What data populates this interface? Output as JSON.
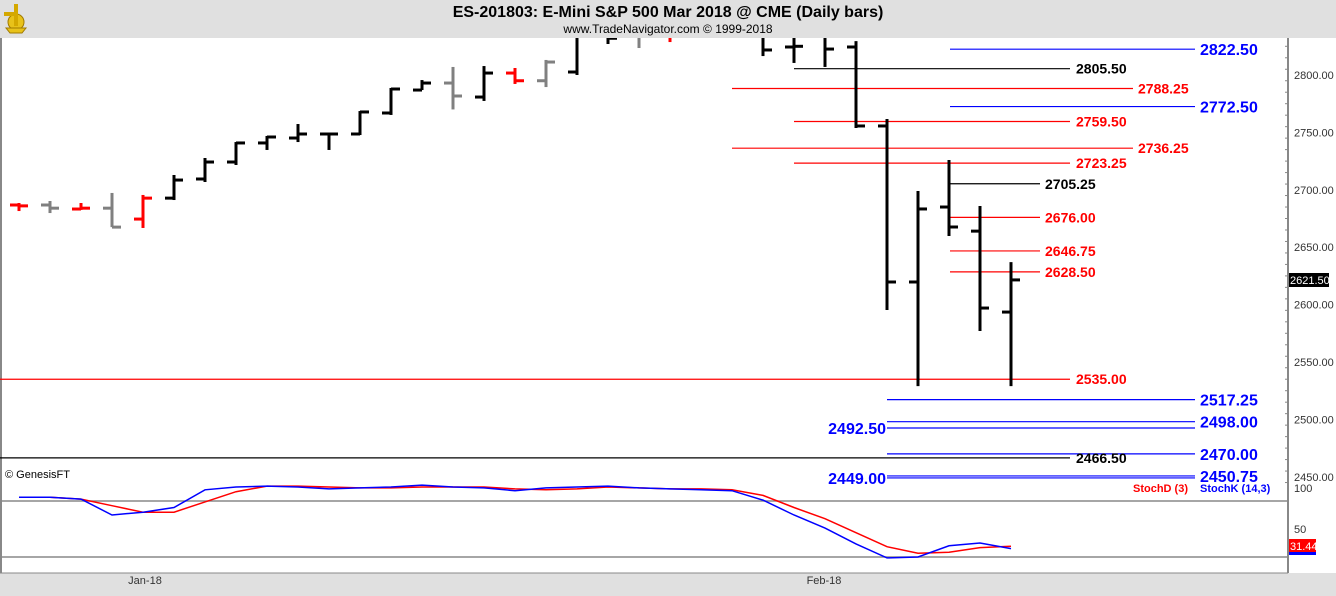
{
  "header": {
    "title": "ES-201803:  E-Mini S&P 500 Mar 2018 @ CME  (Daily bars)",
    "subtitle": "www.TradeNavigator.com © 1999-2018",
    "logo_icon": "gold-sextant-logo"
  },
  "colors": {
    "up": "#000000",
    "down": "#ff0000",
    "neutral": "#808080",
    "blue": "#0000ff",
    "red": "#ff0000",
    "black": "#000000"
  },
  "chart_data": [
    {
      "type": "ohlc",
      "title": "ES-201803:  E-Mini S&P 500 Mar 2018 @ CME  (Daily bars)",
      "y_ticks": [
        "2800.00",
        "2750.00",
        "2700.00",
        "2650.00",
        "2600.00",
        "2550.00",
        "2500.00",
        "2450.00"
      ],
      "ylim": [
        2440,
        2832
      ],
      "x_ticks": [
        "Jan-18",
        "Feb-18"
      ],
      "last_price_label": "2621.50",
      "bars": [
        {
          "o": 2686.75,
          "h": 2688.5,
          "l": 2681.5,
          "c": 2686.0,
          "color": "red"
        },
        {
          "o": 2686.75,
          "h": 2690.25,
          "l": 2679.75,
          "c": 2684.0,
          "color": "neutral"
        },
        {
          "o": 2683.25,
          "h": 2688.5,
          "l": 2682.5,
          "c": 2684.0,
          "color": "red"
        },
        {
          "o": 2684.0,
          "h": 2697.25,
          "l": 2667.5,
          "c": 2667.5,
          "color": "neutral"
        },
        {
          "o": 2674.5,
          "h": 2695.5,
          "l": 2666.75,
          "c": 2692.75,
          "color": "red"
        },
        {
          "o": 2692.75,
          "h": 2712.9,
          "l": 2691.1,
          "c": 2708.5,
          "color": "up"
        },
        {
          "o": 2709.4,
          "h": 2727.7,
          "l": 2706.8,
          "c": 2724.2,
          "color": "up"
        },
        {
          "o": 2724.2,
          "h": 2741.6,
          "l": 2721.6,
          "c": 2740.8,
          "color": "up"
        },
        {
          "o": 2740.8,
          "h": 2746.9,
          "l": 2734.7,
          "c": 2746.0,
          "color": "up"
        },
        {
          "o": 2745.1,
          "h": 2757.3,
          "l": 2741.6,
          "c": 2748.6,
          "color": "up"
        },
        {
          "o": 2748.6,
          "h": 2748.6,
          "l": 2734.7,
          "c": 2748.6,
          "color": "up"
        },
        {
          "o": 2748.6,
          "h": 2768.6,
          "l": 2747.7,
          "c": 2767.8,
          "color": "up"
        },
        {
          "o": 2766.9,
          "h": 2788.7,
          "l": 2765.2,
          "c": 2787.8,
          "color": "up"
        },
        {
          "o": 2786.9,
          "h": 2795.6,
          "l": 2786.9,
          "c": 2793.0,
          "color": "up"
        },
        {
          "o": 2793.0,
          "h": 2807.0,
          "l": 2770.0,
          "c": 2781.7,
          "color": "neutral"
        },
        {
          "o": 2780.8,
          "h": 2807.8,
          "l": 2777.4,
          "c": 2801.7,
          "color": "up"
        },
        {
          "o": 2801.7,
          "h": 2806.1,
          "l": 2792.2,
          "c": 2795.0,
          "color": "red"
        },
        {
          "o": 2795.0,
          "h": 2813.1,
          "l": 2789.5,
          "c": 2811.3,
          "color": "neutral"
        },
        {
          "o": 2802.6,
          "h": 2845.0,
          "l": 2800.0,
          "c": 2840.0,
          "color": "up"
        },
        {
          "o": 2840.0,
          "h": 2845.0,
          "l": 2827.0,
          "c": 2832.0,
          "color": "up"
        },
        {
          "o": 2840.0,
          "h": 2845.0,
          "l": 2823.5,
          "c": 2840.0,
          "color": "neutral"
        },
        {
          "o": 2840.0,
          "h": 2845.0,
          "l": 2828.7,
          "c": 2840.0,
          "color": "red"
        },
        null,
        null,
        {
          "o": 2840.0,
          "h": 2845.0,
          "l": 2816.5,
          "c": 2821.8,
          "color": "up"
        },
        {
          "o": 2824.4,
          "h": 2845.0,
          "l": 2810.5,
          "c": 2825.0,
          "color": "up"
        },
        {
          "o": 2840.0,
          "h": 2845.0,
          "l": 2807.0,
          "c": 2822.6,
          "color": "up"
        },
        {
          "o": 2824.4,
          "h": 2829.5,
          "l": 2753.8,
          "c": 2755.6,
          "color": "up"
        },
        {
          "o": 2755.6,
          "h": 2761.7,
          "l": 2595.3,
          "c": 2619.7,
          "color": "up"
        },
        {
          "o": 2619.7,
          "h": 2699.0,
          "l": 2529.0,
          "c": 2683.3,
          "color": "up"
        },
        {
          "o": 2685.0,
          "h": 2726.0,
          "l": 2659.8,
          "c": 2667.6,
          "color": "up"
        },
        {
          "o": 2664.0,
          "h": 2685.9,
          "l": 2577.0,
          "c": 2597.0,
          "color": "up"
        },
        {
          "o": 2593.5,
          "h": 2637.0,
          "l": 2529.0,
          "c": 2621.5,
          "color": "up"
        }
      ],
      "levels": [
        {
          "value": 2822.5,
          "label": "2822.50",
          "color": "blue"
        },
        {
          "value": 2805.5,
          "label": "2805.50",
          "color": "black"
        },
        {
          "value": 2788.25,
          "label": "2788.25",
          "color": "red"
        },
        {
          "value": 2772.5,
          "label": "2772.50",
          "color": "blue"
        },
        {
          "value": 2759.5,
          "label": "2759.50",
          "color": "red"
        },
        {
          "value": 2736.25,
          "label": "2736.25",
          "color": "red"
        },
        {
          "value": 2723.25,
          "label": "2723.25",
          "color": "red"
        },
        {
          "value": 2705.25,
          "label": "2705.25",
          "color": "black"
        },
        {
          "value": 2676.0,
          "label": "2676.00",
          "color": "red"
        },
        {
          "value": 2646.75,
          "label": "2646.75",
          "color": "red"
        },
        {
          "value": 2628.5,
          "label": "2628.50",
          "color": "red"
        },
        {
          "value": 2535.0,
          "label": "2535.00",
          "color": "red"
        },
        {
          "value": 2517.25,
          "label": "2517.25",
          "color": "blue"
        },
        {
          "value": 2498.0,
          "label": "2498.00",
          "color": "blue"
        },
        {
          "value": 2492.5,
          "label": "2492.50",
          "color": "blue"
        },
        {
          "value": 2470.0,
          "label": "2470.00",
          "color": "blue"
        },
        {
          "value": 2466.5,
          "label": "2466.50",
          "color": "black"
        },
        {
          "value": 2450.75,
          "label": "2450.75",
          "color": "blue"
        },
        {
          "value": 2449.0,
          "label": "2449.00",
          "color": "blue"
        }
      ]
    },
    {
      "type": "line",
      "copyright": "© GenesisFT",
      "y_ticks": [
        "100",
        "50"
      ],
      "reference_lines": [
        80,
        20
      ],
      "ylim": [
        0,
        100
      ],
      "last_value_label": "31.44",
      "series": [
        {
          "name": "StochD (3)",
          "color": "#ff0000",
          "values": [
            84,
            84,
            82,
            75,
            68,
            68,
            79,
            90,
            96,
            96,
            95,
            94,
            94,
            95,
            95,
            95,
            93,
            92,
            93,
            95,
            94,
            93,
            93,
            92,
            86,
            73,
            61,
            46,
            31,
            24,
            25,
            30,
            31.44
          ]
        },
        {
          "name": "StochK (14,3)",
          "color": "#0000ff",
          "values": [
            84,
            84,
            82,
            65,
            68,
            73,
            92,
            95,
            96,
            95,
            93,
            94,
            95,
            97,
            95,
            94,
            91,
            94,
            95,
            96,
            94,
            93,
            92,
            91,
            81,
            65,
            51,
            34,
            19,
            20,
            32,
            35,
            29
          ]
        }
      ]
    }
  ]
}
